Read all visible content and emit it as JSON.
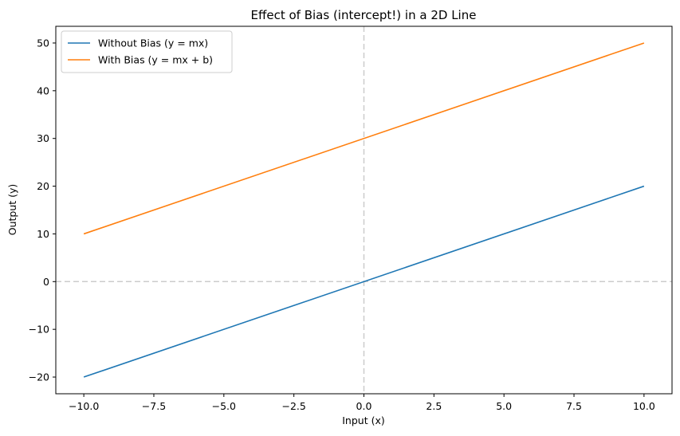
{
  "chart_data": {
    "type": "line",
    "title": "Effect of Bias (intercept!) in a 2D Line",
    "xlabel": "Input (x)",
    "ylabel": "Output (y)",
    "xlim": [
      -11,
      11
    ],
    "ylim": [
      -23.5,
      53.5
    ],
    "xticks": [
      -10.0,
      -7.5,
      -5.0,
      -2.5,
      0.0,
      2.5,
      5.0,
      7.5,
      10.0
    ],
    "xtick_labels": [
      "−10.0",
      "−7.5",
      "−5.0",
      "−2.5",
      "0.0",
      "2.5",
      "5.0",
      "7.5",
      "10.0"
    ],
    "yticks": [
      -20,
      -10,
      0,
      10,
      20,
      30,
      40,
      50
    ],
    "ytick_labels": [
      "−20",
      "−10",
      "0",
      "10",
      "20",
      "30",
      "40",
      "50"
    ],
    "series": [
      {
        "name": "Without Bias (y = mx)",
        "color": "#1f77b4",
        "x": [
          -10,
          10
        ],
        "y": [
          -20,
          20
        ]
      },
      {
        "name": "With Bias (y = mx + b)",
        "color": "#ff7f0e",
        "x": [
          -10,
          10
        ],
        "y": [
          10,
          50
        ]
      }
    ],
    "reference_lines": [
      {
        "orientation": "horizontal",
        "value": 0,
        "style": "dashed",
        "color": "#cccccc"
      },
      {
        "orientation": "vertical",
        "value": 0,
        "style": "dashed",
        "color": "#cccccc"
      }
    ],
    "grid": false,
    "legend_position": "top-left"
  }
}
